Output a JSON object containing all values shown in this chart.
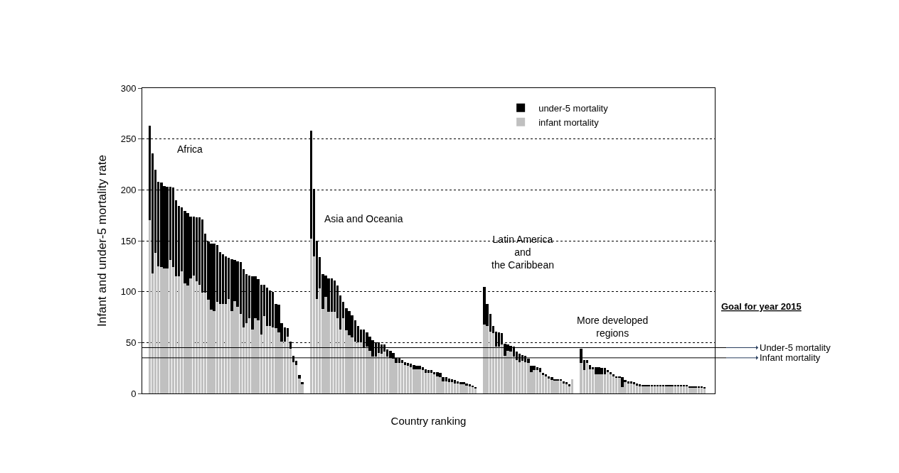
{
  "chart_data": {
    "type": "bar",
    "stacked": true,
    "xlabel": "Country ranking",
    "ylabel": "Infant and under-5 mortality rate",
    "categories": [
      null,
      null,
      null,
      null,
      null,
      null,
      null,
      null,
      null,
      null,
      null,
      null,
      null,
      null,
      null,
      null,
      null,
      null,
      null,
      null,
      null,
      null,
      null,
      null,
      null,
      null,
      null,
      null,
      null,
      null,
      null,
      null,
      null,
      null,
      null,
      null,
      null,
      null,
      null,
      null,
      null,
      null,
      null,
      null,
      null,
      null,
      null,
      null,
      null,
      null,
      null,
      null,
      null,
      null,
      null,
      null,
      null,
      null,
      null,
      null,
      null,
      null,
      null,
      null,
      null,
      null,
      null,
      null,
      null,
      null,
      null,
      null,
      null,
      null,
      null,
      null,
      null,
      null,
      null,
      null,
      null,
      null,
      null,
      null,
      null,
      null,
      null,
      null,
      null,
      null,
      null,
      null,
      null,
      null,
      null,
      null,
      null,
      null,
      null,
      null,
      null,
      null,
      null,
      null,
      null,
      null,
      null,
      null,
      null,
      null,
      null,
      null,
      null,
      null,
      null,
      null,
      null,
      null,
      null,
      null,
      null,
      null,
      null,
      null,
      null,
      null,
      null,
      null,
      null,
      null,
      null,
      null,
      null,
      null,
      null,
      null,
      null,
      null,
      null,
      null,
      null,
      null,
      null,
      null,
      null,
      null,
      null,
      null,
      null,
      null,
      null,
      null,
      null,
      null,
      null,
      null,
      null,
      null,
      null,
      null,
      null,
      null,
      null,
      null,
      null,
      null,
      null,
      null,
      null,
      null,
      null,
      null,
      null,
      null,
      null,
      null,
      null,
      null,
      null,
      null,
      null,
      null,
      null,
      null,
      null,
      null,
      null,
      null,
      null,
      null,
      null,
      null,
      null,
      null,
      null
    ],
    "series": [
      {
        "name": "infant mortality",
        "color": "#c0c0c0",
        "values": [
          null,
          null,
          170,
          118,
          138,
          125,
          124,
          123,
          123,
          131,
          124,
          115,
          115,
          120,
          108,
          106,
          113,
          116,
          110,
          107,
          99,
          99,
          92,
          82,
          81,
          90,
          88,
          88,
          88,
          93,
          81,
          91,
          85,
          78,
          65,
          69,
          74,
          63,
          74,
          72,
          58,
          76,
          66,
          66,
          65,
          64,
          60,
          51,
          51,
          56,
          44,
          31,
          28,
          15,
          9,
          null,
          null,
          152,
          135,
          93,
          103,
          83,
          95,
          80,
          80,
          80,
          74,
          63,
          74,
          62,
          57,
          55,
          51,
          50,
          50,
          45,
          46,
          42,
          36,
          36,
          40,
          39,
          41,
          36,
          35,
          34,
          30,
          30,
          30,
          28,
          27,
          26,
          24,
          24,
          24,
          23,
          20,
          20,
          20,
          19,
          17,
          16,
          12,
          12,
          11,
          11,
          10,
          10,
          9,
          9,
          8,
          7,
          6,
          5,
          null,
          null,
          68,
          66,
          61,
          59,
          46,
          46,
          48,
          37,
          42,
          41,
          36,
          33,
          31,
          32,
          31,
          30,
          21,
          23,
          23,
          21,
          18,
          17,
          15,
          13,
          13,
          13,
          13,
          10,
          9,
          7,
          14,
          null,
          null,
          30,
          23,
          30,
          24,
          24,
          19,
          19,
          19,
          19,
          21,
          19,
          17,
          16,
          16,
          6,
          11,
          10,
          10,
          9,
          8,
          7,
          7,
          7,
          7,
          7,
          7,
          7,
          7,
          7,
          7,
          7,
          7,
          7,
          7,
          7,
          7,
          7,
          6,
          6,
          6,
          6,
          6,
          5,
          null,
          null,
          null
        ]
      },
      {
        "name": "under-5 mortality",
        "color": "#000000",
        "values": [
          null,
          null,
          93,
          118,
          82,
          83,
          83,
          81,
          80,
          72,
          78,
          75,
          69,
          63,
          71,
          71,
          61,
          58,
          63,
          66,
          72,
          58,
          57,
          65,
          66,
          56,
          51,
          49,
          47,
          40,
          51,
          40,
          45,
          51,
          57,
          48,
          42,
          52,
          41,
          40,
          49,
          31,
          38,
          35,
          35,
          24,
          27,
          18,
          14,
          8,
          7,
          6,
          4,
          3,
          2,
          null,
          null,
          106,
          66,
          57,
          31,
          34,
          21,
          33,
          33,
          31,
          32,
          33,
          16,
          22,
          24,
          22,
          21,
          16,
          13,
          18,
          14,
          14,
          16,
          14,
          10,
          9,
          7,
          7,
          7,
          6,
          5,
          5,
          3,
          3,
          3,
          3,
          4,
          3,
          3,
          3,
          4,
          3,
          3,
          2,
          4,
          4,
          4,
          4,
          4,
          3,
          3,
          2,
          2,
          2,
          2,
          2,
          2,
          1,
          null,
          null,
          37,
          22,
          17,
          7,
          15,
          14,
          11,
          12,
          6,
          6,
          10,
          8,
          8,
          6,
          6,
          4,
          6,
          4,
          3,
          4,
          2,
          2,
          2,
          3,
          1,
          1,
          1,
          2,
          2,
          2,
          0,
          null,
          null,
          14,
          10,
          3,
          4,
          2,
          7,
          7,
          6,
          6,
          2,
          2,
          2,
          1,
          1,
          10,
          2,
          2,
          2,
          2,
          2,
          2,
          1,
          1,
          1,
          1,
          1,
          1,
          1,
          1,
          1,
          1,
          1,
          1,
          1,
          1,
          1,
          1,
          1,
          1,
          1,
          1,
          1,
          1,
          null,
          null,
          null
        ]
      }
    ],
    "ylim": [
      0,
      300
    ],
    "yticks": [
      0,
      50,
      100,
      150,
      200,
      250,
      300
    ],
    "grid": "y",
    "legend": "top right",
    "ref_lines": [
      {
        "axis": "y",
        "value": 45,
        "label": "Under-5 mortality"
      },
      {
        "axis": "y",
        "value": 35,
        "label": "Infant mortality"
      }
    ],
    "annotations": [
      "Africa",
      "Asia and Oceania",
      "Latin America\nand\nthe Caribbean",
      "More developed\nregions",
      "Goal for year 2015"
    ]
  }
}
